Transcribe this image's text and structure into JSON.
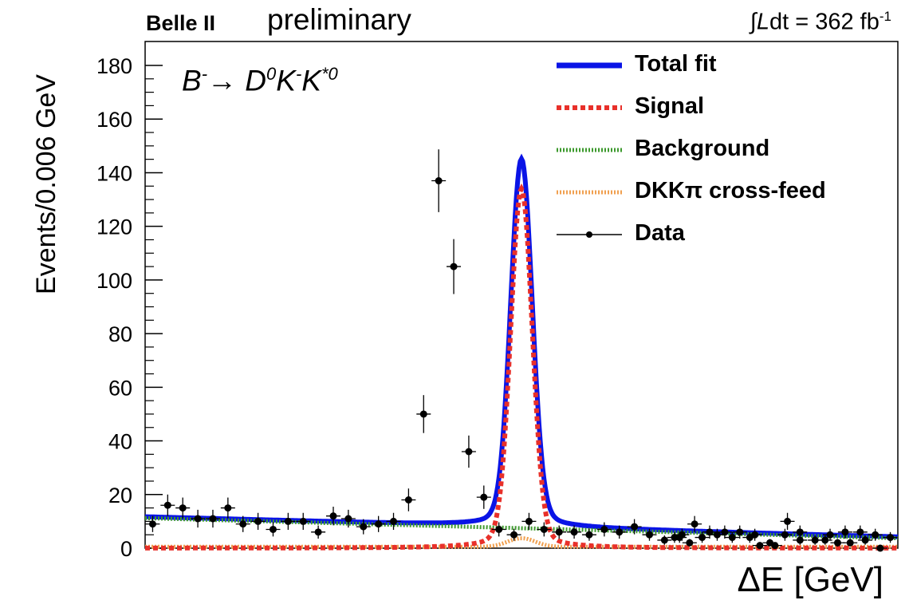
{
  "header": {
    "experiment": "Belle II",
    "status": "preliminary",
    "lumi_prefix": "∫",
    "lumi_L": "L",
    "lumi_dt": "dt",
    "lumi_value": " = 362 fb",
    "lumi_exp": "-1"
  },
  "decay": {
    "b": "B",
    "b_sup": "-",
    "arrow": "→ ",
    "d": "D",
    "d_sup": "0",
    "k": "K",
    "k_sup": "-",
    "kstar": "K",
    "kstar_sup": "*0"
  },
  "chart_data": {
    "type": "line",
    "xlabel": "ΔE [GeV]",
    "ylabel": "Events/0.006 GeV",
    "xlim": [
      -0.15,
      0.15
    ],
    "ylim": [
      0,
      185
    ],
    "yticks": [
      0,
      20,
      40,
      60,
      80,
      100,
      120,
      140,
      160,
      180
    ],
    "legend_position": "top-right",
    "legend": [
      {
        "key": "total",
        "label": "Total fit"
      },
      {
        "key": "signal",
        "label": "Signal"
      },
      {
        "key": "background",
        "label": "Background"
      },
      {
        "key": "crossfeed",
        "label": "DKKπ cross-feed"
      },
      {
        "key": "data",
        "label": "Data"
      }
    ],
    "colors": {
      "total": "#0a14e6",
      "signal": "#e8302a",
      "background": "#3e9a2e",
      "crossfeed": "#f0a050",
      "data": "#000000"
    },
    "data": {
      "x": [
        -0.147,
        -0.141,
        -0.135,
        -0.129,
        -0.123,
        -0.117,
        -0.111,
        -0.105,
        -0.099,
        -0.093,
        -0.087,
        -0.081,
        -0.075,
        -0.069,
        -0.063,
        -0.057,
        -0.051,
        -0.045,
        -0.039,
        -0.033,
        -0.027,
        -0.021,
        -0.015,
        -0.009,
        -0.003,
        0.003,
        0.009,
        0.015,
        0.021,
        0.027,
        0.033,
        0.039,
        0.045,
        0.051,
        0.057,
        0.063,
        0.069,
        0.075,
        0.081,
        0.087,
        0.093,
        0.099,
        0.105,
        0.111,
        0.117,
        0.123,
        0.129,
        0.135,
        0.141,
        0.147
      ],
      "y": [
        9,
        16,
        15,
        11,
        11,
        15,
        9,
        10,
        7,
        10,
        10,
        6,
        12,
        11,
        8,
        9,
        10,
        18,
        50,
        137,
        105,
        36,
        19,
        7,
        5,
        10,
        7,
        6,
        6,
        5,
        7,
        6,
        8,
        5,
        3,
        4,
        9,
        6,
        6,
        6,
        5,
        2,
        5,
        6,
        3,
        5,
        6,
        6,
        5,
        4
      ]
    },
    "data_extra": {
      "x": [
        0.061,
        0.064,
        0.067,
        0.072,
        0.078,
        0.084,
        0.091,
        0.095,
        0.101,
        0.106,
        0.111,
        0.121,
        0.126,
        0.131,
        0.137,
        0.143
      ],
      "y": [
        4,
        5,
        2,
        4,
        5,
        4,
        4,
        1,
        1,
        10,
        3,
        3,
        2,
        2,
        3,
        0
      ]
    }
  }
}
